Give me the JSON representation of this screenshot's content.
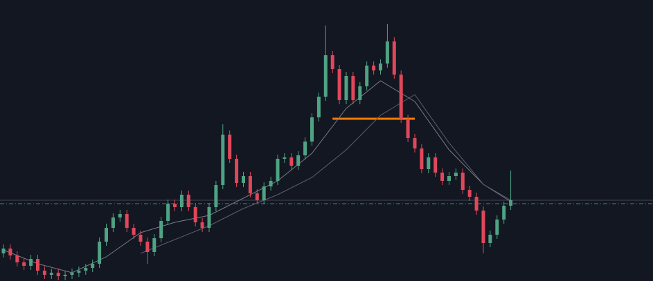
{
  "chart_data": {
    "type": "candlestick",
    "background": "#131722",
    "up_color": "#4fa383",
    "down_color": "#e0485a",
    "ylim": [
      0,
      407
    ],
    "open": [
      40,
      47,
      37,
      27,
      22,
      32,
      15,
      9,
      12,
      7,
      9,
      12,
      15,
      19,
      25,
      57,
      77,
      92,
      97,
      77,
      67,
      57,
      42,
      62,
      87,
      112,
      107,
      125,
      107,
      85,
      77,
      107,
      139,
      212,
      177,
      142,
      152,
      127,
      117,
      137,
      145,
      177,
      179,
      167,
      182,
      202,
      237,
      267,
      327,
      307,
      262,
      297,
      262,
      282,
      312,
      305,
      315,
      347,
      299,
      235,
      207,
      192,
      162,
      179,
      157,
      145,
      152,
      157,
      132,
      122,
      102,
      55,
      67,
      89,
      109
    ],
    "close": [
      47,
      37,
      27,
      22,
      32,
      15,
      9,
      12,
      7,
      9,
      12,
      15,
      19,
      25,
      57,
      77,
      92,
      97,
      77,
      67,
      57,
      42,
      62,
      87,
      112,
      107,
      125,
      107,
      85,
      77,
      107,
      139,
      212,
      177,
      142,
      152,
      127,
      117,
      137,
      145,
      177,
      179,
      167,
      182,
      202,
      237,
      267,
      327,
      307,
      262,
      297,
      262,
      282,
      312,
      305,
      315,
      347,
      299,
      235,
      207,
      192,
      162,
      179,
      157,
      145,
      152,
      157,
      132,
      122,
      102,
      55,
      67,
      89,
      109,
      117
    ],
    "high": [
      53,
      53,
      43,
      33,
      38,
      38,
      21,
      18,
      18,
      15,
      18,
      21,
      25,
      31,
      63,
      83,
      98,
      103,
      103,
      83,
      73,
      63,
      68,
      93,
      118,
      118,
      131,
      131,
      113,
      91,
      113,
      145,
      227,
      218,
      183,
      158,
      158,
      133,
      143,
      151,
      183,
      185,
      185,
      188,
      208,
      243,
      273,
      370,
      333,
      313,
      303,
      303,
      288,
      318,
      318,
      321,
      372,
      353,
      305,
      241,
      213,
      198,
      185,
      185,
      163,
      158,
      163,
      163,
      138,
      128,
      108,
      73,
      95,
      115,
      160
    ],
    "low": [
      34,
      31,
      21,
      16,
      16,
      9,
      3,
      3,
      1,
      1,
      3,
      6,
      9,
      13,
      19,
      51,
      71,
      86,
      71,
      61,
      51,
      25,
      36,
      56,
      81,
      101,
      101,
      101,
      79,
      71,
      71,
      101,
      133,
      171,
      136,
      136,
      121,
      111,
      111,
      131,
      139,
      171,
      161,
      161,
      176,
      196,
      231,
      261,
      301,
      256,
      256,
      256,
      256,
      276,
      299,
      299,
      309,
      293,
      229,
      201,
      186,
      156,
      156,
      151,
      139,
      139,
      146,
      126,
      116,
      96,
      40,
      49,
      61,
      83,
      103
    ],
    "moving_averages": [
      {
        "color": "#787b86",
        "x": [
          0,
          5,
          10,
          15,
          20,
          25,
          30,
          35,
          40,
          45,
          50,
          55,
          60,
          65,
          70,
          74
        ],
        "values": [
          45,
          25,
          12,
          35,
          70,
          85,
          95,
          120,
          145,
          185,
          250,
          290,
          260,
          190,
          140,
          115
        ]
      },
      {
        "color": "#5d606b",
        "x": [
          20,
          25,
          30,
          35,
          40,
          45,
          50,
          55,
          60,
          65,
          70,
          74
        ],
        "values": [
          40,
          60,
          80,
          105,
          125,
          150,
          190,
          240,
          270,
          200,
          140,
          117
        ]
      }
    ],
    "levels": [
      {
        "value": 235,
        "color": "#f57c00",
        "style": "solid",
        "from": 48,
        "to": 60
      },
      {
        "value": 117,
        "color": "#434651",
        "style": "solid"
      },
      {
        "value": 112,
        "color": "#2e9b4f",
        "style": "dashdot"
      }
    ]
  }
}
